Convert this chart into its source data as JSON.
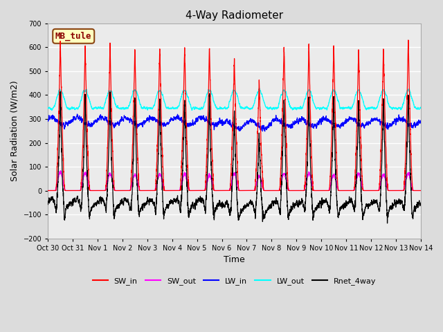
{
  "title": "4-Way Radiometer",
  "xlabel": "Time",
  "ylabel": "Solar Radiation (W/m2)",
  "ylim": [
    -200,
    700
  ],
  "yticks": [
    -200,
    -100,
    0,
    100,
    200,
    300,
    400,
    500,
    600,
    700
  ],
  "num_days": 15,
  "colors": {
    "SW_in": "#ff0000",
    "SW_out": "#ff00ff",
    "LW_in": "#0000ff",
    "LW_out": "#00ffff",
    "Rnet_4way": "#000000"
  },
  "label_box": "MB_tule",
  "label_box_facecolor": "#ffffc0",
  "label_box_edgecolor": "#8b4513",
  "label_box_textcolor": "#8b0000",
  "x_tick_labels": [
    "Oct 30",
    "Oct 31",
    "Nov 1",
    "Nov 2",
    "Nov 3",
    "Nov 4",
    "Nov 5",
    "Nov 6",
    "Nov 7",
    "Nov 8",
    "Nov 9",
    "Nov 10",
    "Nov 11",
    "Nov 12",
    "Nov 13",
    "Nov 14"
  ],
  "background_color": "#dcdcdc",
  "plot_bg_color": "#ebebeb",
  "grid_color": "#ffffff",
  "figsize": [
    6.4,
    4.8
  ],
  "dpi": 100
}
